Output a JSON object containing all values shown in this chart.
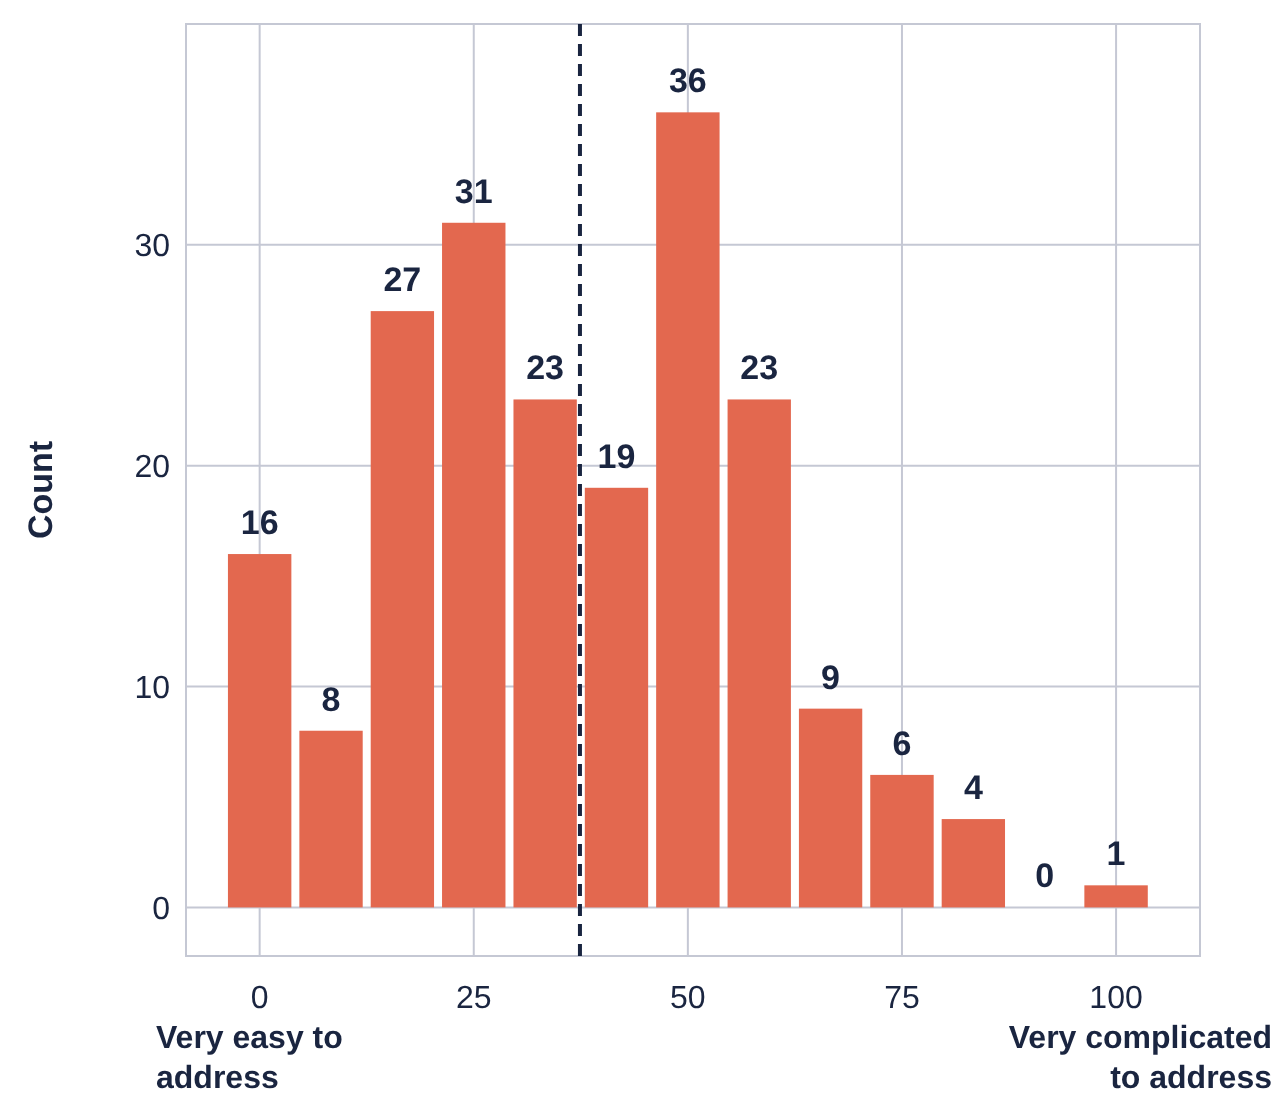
{
  "chart_data": {
    "type": "histogram",
    "ylabel": "Count",
    "bins": [
      -4.17,
      4.17,
      12.5,
      20.83,
      29.17,
      37.5,
      45.83,
      54.17,
      62.5,
      70.83,
      79.17,
      87.5,
      95.83,
      104.17
    ],
    "values": [
      16,
      8,
      27,
      31,
      23,
      19,
      36,
      23,
      9,
      6,
      4,
      0,
      1
    ],
    "color": "#e3684f",
    "data_labels": true,
    "xlim": [
      -8.6,
      109.8
    ],
    "xticks": [
      0,
      25,
      50,
      75,
      100
    ],
    "ylim": [
      -2.2,
      40
    ],
    "yticks": [
      0,
      10,
      20,
      30
    ],
    "grid": true,
    "ref_lines": [
      {
        "axis": "x",
        "value": 37.4,
        "color": "#1a2540",
        "line_style": "dashed"
      }
    ],
    "annotations": [
      "Very easy to address",
      "Very complicated to address"
    ]
  }
}
